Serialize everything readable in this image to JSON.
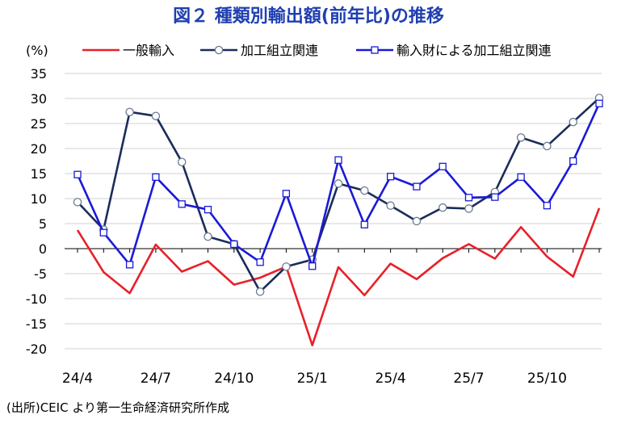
{
  "chart_data": {
    "type": "line",
    "title": "図２ 種類別輸出額(前年比)の推移",
    "ylabel": "(%)",
    "ylim": [
      -20,
      35
    ],
    "yticks": [
      35,
      30,
      25,
      20,
      15,
      10,
      5,
      0,
      -5,
      -10,
      -15,
      -20
    ],
    "x": [
      "24/4",
      "24/5",
      "24/6",
      "24/7",
      "24/8",
      "24/9",
      "24/10",
      "24/11",
      "24/12",
      "25/1",
      "25/2",
      "25/3",
      "25/4",
      "25/5",
      "25/6",
      "25/7",
      "25/8",
      "25/9",
      "25/10",
      "25/11",
      "25/12"
    ],
    "xtick_labels": [
      "24/4",
      "24/7",
      "24/10",
      "25/1",
      "25/4",
      "25/7",
      "25/10"
    ],
    "legend_position": "top",
    "series": [
      {
        "name": "一般輸入",
        "color": "#e8202a",
        "marker": "none",
        "values": [
          3.7,
          -4.7,
          -8.9,
          0.8,
          -4.6,
          -2.5,
          -7.2,
          -5.8,
          -3.6,
          -19.3,
          -3.7,
          -9.3,
          -3.0,
          -6.1,
          -1.9,
          0.9,
          -2.0,
          4.3,
          -1.6,
          -5.6,
          8.1
        ]
      },
      {
        "name": "加工組立関連",
        "color": "#1a2d5a",
        "marker": "circle",
        "values": [
          9.3,
          3.8,
          27.3,
          26.5,
          17.3,
          2.4,
          0.9,
          -8.6,
          -3.6,
          -2.2,
          13.0,
          11.6,
          8.6,
          5.5,
          8.2,
          8.0,
          11.3,
          22.2,
          20.5,
          25.3,
          30.1
        ]
      },
      {
        "name": "輸入財による加工組立関連",
        "color": "#1a1ad6",
        "marker": "square",
        "values": [
          14.8,
          3.2,
          -3.2,
          14.3,
          8.9,
          7.8,
          0.9,
          -2.7,
          11.0,
          -3.5,
          17.7,
          4.8,
          14.4,
          12.4,
          16.4,
          10.2,
          10.3,
          14.3,
          8.6,
          17.5,
          29.0
        ]
      }
    ]
  },
  "source_note": "(出所)CEIC より第一生命経済研究所作成"
}
